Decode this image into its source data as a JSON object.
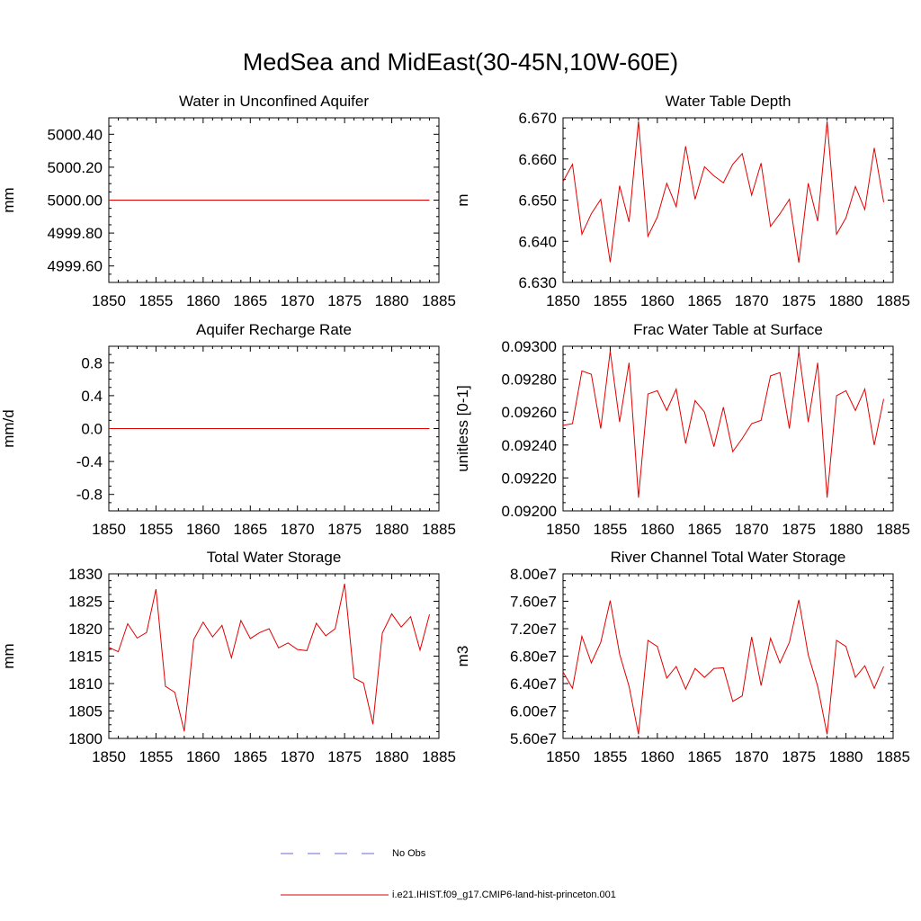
{
  "title": "MedSea and MidEast(30-45N,10W-60E)",
  "legend": {
    "obs_label": "No Obs",
    "obs_color": "#6a6ad0",
    "model_label": "i.e21.IHIST.f09_g17.CMIP6-land-hist-princeton.001",
    "model_color": "#e00000"
  },
  "chart_data": [
    {
      "type": "line",
      "title": "Water in Unconfined Aquifer",
      "ylabel": "mm",
      "xlim": [
        1850,
        1885
      ],
      "ylim": [
        4999.5,
        5000.5
      ],
      "xticks": [
        1850,
        1855,
        1860,
        1865,
        1870,
        1875,
        1880,
        1885
      ],
      "xtick_labels": [
        "1850",
        "1855",
        "1860",
        "1865",
        "1870",
        "1875",
        "1880",
        "1885"
      ],
      "yticks": [
        4999.6,
        4999.8,
        5000.0,
        5000.2,
        5000.4
      ],
      "ytick_labels": [
        "4999.60",
        "4999.80",
        "5000.00",
        "5000.20",
        "5000.40"
      ],
      "series": [
        {
          "name": "i.e21.IHIST.f09_g17.CMIP6-land-hist-princeton.001",
          "color": "#e00000",
          "x": [
            1850,
            1851,
            1852,
            1853,
            1854,
            1855,
            1856,
            1857,
            1858,
            1859,
            1860,
            1861,
            1862,
            1863,
            1864,
            1865,
            1866,
            1867,
            1868,
            1869,
            1870,
            1871,
            1872,
            1873,
            1874,
            1875,
            1876,
            1877,
            1878,
            1879,
            1880,
            1881,
            1882,
            1883,
            1884
          ],
          "y": [
            5000.0,
            5000.0,
            5000.0,
            5000.0,
            5000.0,
            5000.0,
            5000.0,
            5000.0,
            5000.0,
            5000.0,
            5000.0,
            5000.0,
            5000.0,
            5000.0,
            5000.0,
            5000.0,
            5000.0,
            5000.0,
            5000.0,
            5000.0,
            5000.0,
            5000.0,
            5000.0,
            5000.0,
            5000.0,
            5000.0,
            5000.0,
            5000.0,
            5000.0,
            5000.0,
            5000.0,
            5000.0,
            5000.0,
            5000.0,
            5000.0
          ]
        }
      ]
    },
    {
      "type": "line",
      "title": "Water Table Depth",
      "ylabel": "m",
      "xlim": [
        1850,
        1885
      ],
      "ylim": [
        6.63,
        6.67
      ],
      "xticks": [
        1850,
        1855,
        1860,
        1865,
        1870,
        1875,
        1880,
        1885
      ],
      "xtick_labels": [
        "1850",
        "1855",
        "1860",
        "1865",
        "1870",
        "1875",
        "1880",
        "1885"
      ],
      "yticks": [
        6.63,
        6.64,
        6.65,
        6.66,
        6.67
      ],
      "ytick_labels": [
        "6.630",
        "6.640",
        "6.650",
        "6.660",
        "6.670"
      ],
      "series": [
        {
          "name": "i.e21.IHIST.f09_g17.CMIP6-land-hist-princeton.001",
          "color": "#e00000",
          "x": [
            1850,
            1851,
            1852,
            1853,
            1854,
            1855,
            1856,
            1857,
            1858,
            1859,
            1860,
            1861,
            1862,
            1863,
            1864,
            1865,
            1866,
            1867,
            1868,
            1869,
            1870,
            1871,
            1872,
            1873,
            1874,
            1875,
            1876,
            1877,
            1878,
            1879,
            1880,
            1881,
            1882,
            1883,
            1884
          ],
          "y": [
            6.6545,
            6.6587,
            6.6417,
            6.6467,
            6.6502,
            6.6349,
            6.6535,
            6.6447,
            6.6692,
            6.6412,
            6.6459,
            6.6541,
            6.6484,
            6.6631,
            6.6502,
            6.6581,
            6.6559,
            6.6542,
            6.6587,
            6.6613,
            6.6512,
            6.659,
            6.6436,
            6.6467,
            6.6502,
            6.6348,
            6.6541,
            6.6449,
            6.6692,
            6.6417,
            6.6457,
            6.6533,
            6.6477,
            6.6627,
            6.6495
          ]
        }
      ]
    },
    {
      "type": "line",
      "title": "Aquifer Recharge Rate",
      "ylabel": "mm/d",
      "xlim": [
        1850,
        1885
      ],
      "ylim": [
        -1.0,
        1.0
      ],
      "xticks": [
        1850,
        1855,
        1860,
        1865,
        1870,
        1875,
        1880,
        1885
      ],
      "xtick_labels": [
        "1850",
        "1855",
        "1860",
        "1865",
        "1870",
        "1875",
        "1880",
        "1885"
      ],
      "yticks": [
        -0.8,
        -0.4,
        0.0,
        0.4,
        0.8
      ],
      "ytick_labels": [
        "-0.8",
        "-0.4",
        "0.0",
        "0.4",
        "0.8"
      ],
      "series": [
        {
          "name": "i.e21.IHIST.f09_g17.CMIP6-land-hist-princeton.001",
          "color": "#e00000",
          "x": [
            1850,
            1851,
            1852,
            1853,
            1854,
            1855,
            1856,
            1857,
            1858,
            1859,
            1860,
            1861,
            1862,
            1863,
            1864,
            1865,
            1866,
            1867,
            1868,
            1869,
            1870,
            1871,
            1872,
            1873,
            1874,
            1875,
            1876,
            1877,
            1878,
            1879,
            1880,
            1881,
            1882,
            1883,
            1884
          ],
          "y": [
            0.0,
            0.0,
            0.0,
            0.0,
            0.0,
            0.0,
            0.0,
            0.0,
            0.0,
            0.0,
            0.0,
            0.0,
            0.0,
            0.0,
            0.0,
            0.0,
            0.0,
            0.0,
            0.0,
            0.0,
            0.0,
            0.0,
            0.0,
            0.0,
            0.0,
            0.0,
            0.0,
            0.0,
            0.0,
            0.0,
            0.0,
            0.0,
            0.0,
            0.0,
            0.0
          ]
        }
      ]
    },
    {
      "type": "line",
      "title": "Frac Water Table at Surface",
      "ylabel": "unitless [0-1]",
      "xlim": [
        1850,
        1885
      ],
      "ylim": [
        0.092,
        0.093
      ],
      "xticks": [
        1850,
        1855,
        1860,
        1865,
        1870,
        1875,
        1880,
        1885
      ],
      "xtick_labels": [
        "1850",
        "1855",
        "1860",
        "1865",
        "1870",
        "1875",
        "1880",
        "1885"
      ],
      "yticks": [
        0.092,
        0.0922,
        0.0924,
        0.0926,
        0.0928,
        0.093
      ],
      "ytick_labels": [
        "0.09200",
        "0.09220",
        "0.09240",
        "0.09260",
        "0.09280",
        "0.09300"
      ],
      "series": [
        {
          "name": "i.e21.IHIST.f09_g17.CMIP6-land-hist-princeton.001",
          "color": "#e00000",
          "x": [
            1850,
            1851,
            1852,
            1853,
            1854,
            1855,
            1856,
            1857,
            1858,
            1859,
            1860,
            1861,
            1862,
            1863,
            1864,
            1865,
            1866,
            1867,
            1868,
            1869,
            1870,
            1871,
            1872,
            1873,
            1874,
            1875,
            1876,
            1877,
            1878,
            1879,
            1880,
            1881,
            1882,
            1883,
            1884
          ],
          "y": [
            0.09252,
            0.09253,
            0.09285,
            0.09283,
            0.0925,
            0.09297,
            0.09254,
            0.0929,
            0.09208,
            0.09271,
            0.09273,
            0.09261,
            0.09274,
            0.09241,
            0.09267,
            0.0926,
            0.09239,
            0.09263,
            0.09236,
            0.09244,
            0.09253,
            0.09255,
            0.09282,
            0.09284,
            0.0925,
            0.09297,
            0.09254,
            0.0929,
            0.09208,
            0.0927,
            0.09273,
            0.09261,
            0.09274,
            0.0924,
            0.09268
          ]
        }
      ]
    },
    {
      "type": "line",
      "title": "Total Water Storage",
      "ylabel": "mm",
      "xlim": [
        1850,
        1885
      ],
      "ylim": [
        1800,
        1830
      ],
      "xticks": [
        1850,
        1855,
        1860,
        1865,
        1870,
        1875,
        1880,
        1885
      ],
      "xtick_labels": [
        "1850",
        "1855",
        "1860",
        "1865",
        "1870",
        "1875",
        "1880",
        "1885"
      ],
      "yticks": [
        1800,
        1805,
        1810,
        1815,
        1820,
        1825,
        1830
      ],
      "ytick_labels": [
        "1800",
        "1805",
        "1810",
        "1815",
        "1820",
        "1825",
        "1830"
      ],
      "series": [
        {
          "name": "i.e21.IHIST.f09_g17.CMIP6-land-hist-princeton.001",
          "color": "#e00000",
          "x": [
            1850,
            1851,
            1852,
            1853,
            1854,
            1855,
            1856,
            1857,
            1858,
            1859,
            1860,
            1861,
            1862,
            1863,
            1864,
            1865,
            1866,
            1867,
            1868,
            1869,
            1870,
            1871,
            1872,
            1873,
            1874,
            1875,
            1876,
            1877,
            1878,
            1879,
            1880,
            1881,
            1882,
            1883,
            1884
          ],
          "y": [
            1816.6,
            1815.8,
            1820.9,
            1818.3,
            1819.3,
            1827.2,
            1809.5,
            1808.4,
            1801.3,
            1818.0,
            1821.2,
            1818.5,
            1820.6,
            1814.7,
            1821.5,
            1818.2,
            1819.3,
            1820.0,
            1816.5,
            1817.4,
            1816.2,
            1816.0,
            1821.0,
            1818.7,
            1820.0,
            1828.2,
            1811.0,
            1810.1,
            1802.6,
            1819.2,
            1822.7,
            1820.3,
            1822.2,
            1816.1,
            1822.6
          ]
        }
      ]
    },
    {
      "type": "line",
      "title": "River Channel Total Water Storage",
      "ylabel": "m3",
      "xlim": [
        1850,
        1885
      ],
      "ylim": [
        56000000.0,
        80000000.0
      ],
      "xticks": [
        1850,
        1855,
        1860,
        1865,
        1870,
        1875,
        1880,
        1885
      ],
      "xtick_labels": [
        "1850",
        "1855",
        "1860",
        "1865",
        "1870",
        "1875",
        "1880",
        "1885"
      ],
      "yticks": [
        56000000.0,
        60000000.0,
        64000000.0,
        68000000.0,
        72000000.0,
        76000000.0,
        80000000.0
      ],
      "ytick_labels": [
        "5.60e7",
        "6.00e7",
        "6.40e7",
        "6.80e7",
        "7.20e7",
        "7.60e7",
        "8.00e7"
      ],
      "series": [
        {
          "name": "i.e21.IHIST.f09_g17.CMIP6-land-hist-princeton.001",
          "color": "#e00000",
          "x": [
            1850,
            1851,
            1852,
            1853,
            1854,
            1855,
            1856,
            1857,
            1858,
            1859,
            1860,
            1861,
            1862,
            1863,
            1864,
            1865,
            1866,
            1867,
            1868,
            1869,
            1870,
            1871,
            1872,
            1873,
            1874,
            1875,
            1876,
            1877,
            1878,
            1879,
            1880,
            1881,
            1882,
            1883,
            1884
          ],
          "y": [
            65700000,
            63300000,
            70900000,
            67000000,
            70000000,
            76100000,
            68300000,
            63600000,
            56600000,
            70300000,
            69400000,
            64800000,
            66500000,
            63200000,
            66200000,
            64900000,
            66200000,
            66300000,
            61400000,
            62200000,
            70800000,
            63700000,
            70600000,
            67000000,
            70000000,
            76200000,
            68200000,
            63600000,
            56600000,
            70300000,
            69400000,
            64900000,
            66600000,
            63300000,
            66500000
          ]
        }
      ]
    }
  ]
}
